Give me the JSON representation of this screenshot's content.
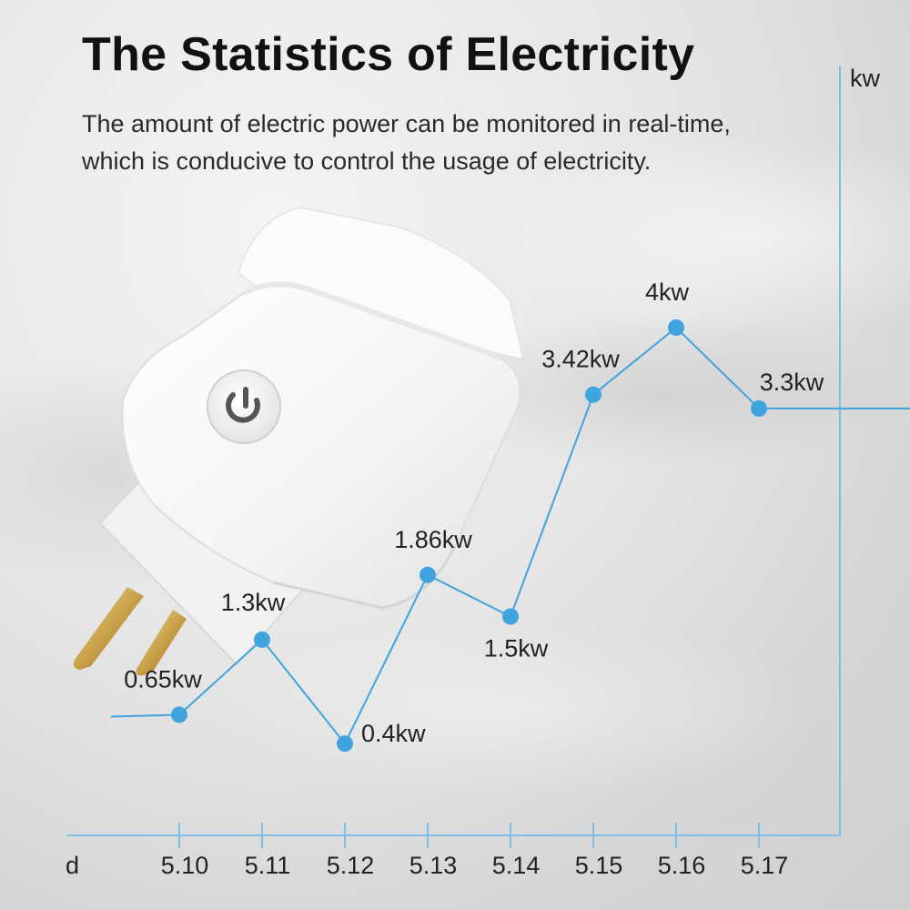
{
  "header": {
    "title": "The Statistics of Electricity",
    "subtitle_line1": "The amount of electric power can be monitored in real-time,",
    "subtitle_line2": "which is conducive to control the usage of electricity."
  },
  "colors": {
    "series": "#3fa3e0",
    "axis": "#7fbfe6",
    "text": "#222222"
  },
  "product": {
    "icon": "power-icon"
  },
  "chart_data": {
    "type": "line",
    "title": "",
    "xlabel": "d",
    "ylabel": "kw",
    "categories": [
      "5.10",
      "5.11",
      "5.12",
      "5.13",
      "5.14",
      "5.15",
      "5.16",
      "5.17"
    ],
    "series": [
      {
        "name": "power",
        "values": [
          0.65,
          1.3,
          0.4,
          1.86,
          1.5,
          3.42,
          4,
          3.3
        ],
        "labels": [
          "0.65kw",
          "1.3kw",
          "0.4kw",
          "1.86kw",
          "1.5kw",
          "3.42kw",
          "4kw",
          "3.3kw"
        ]
      }
    ],
    "ylim": [
      0,
      4.4
    ],
    "grid": false,
    "legend": "none"
  }
}
